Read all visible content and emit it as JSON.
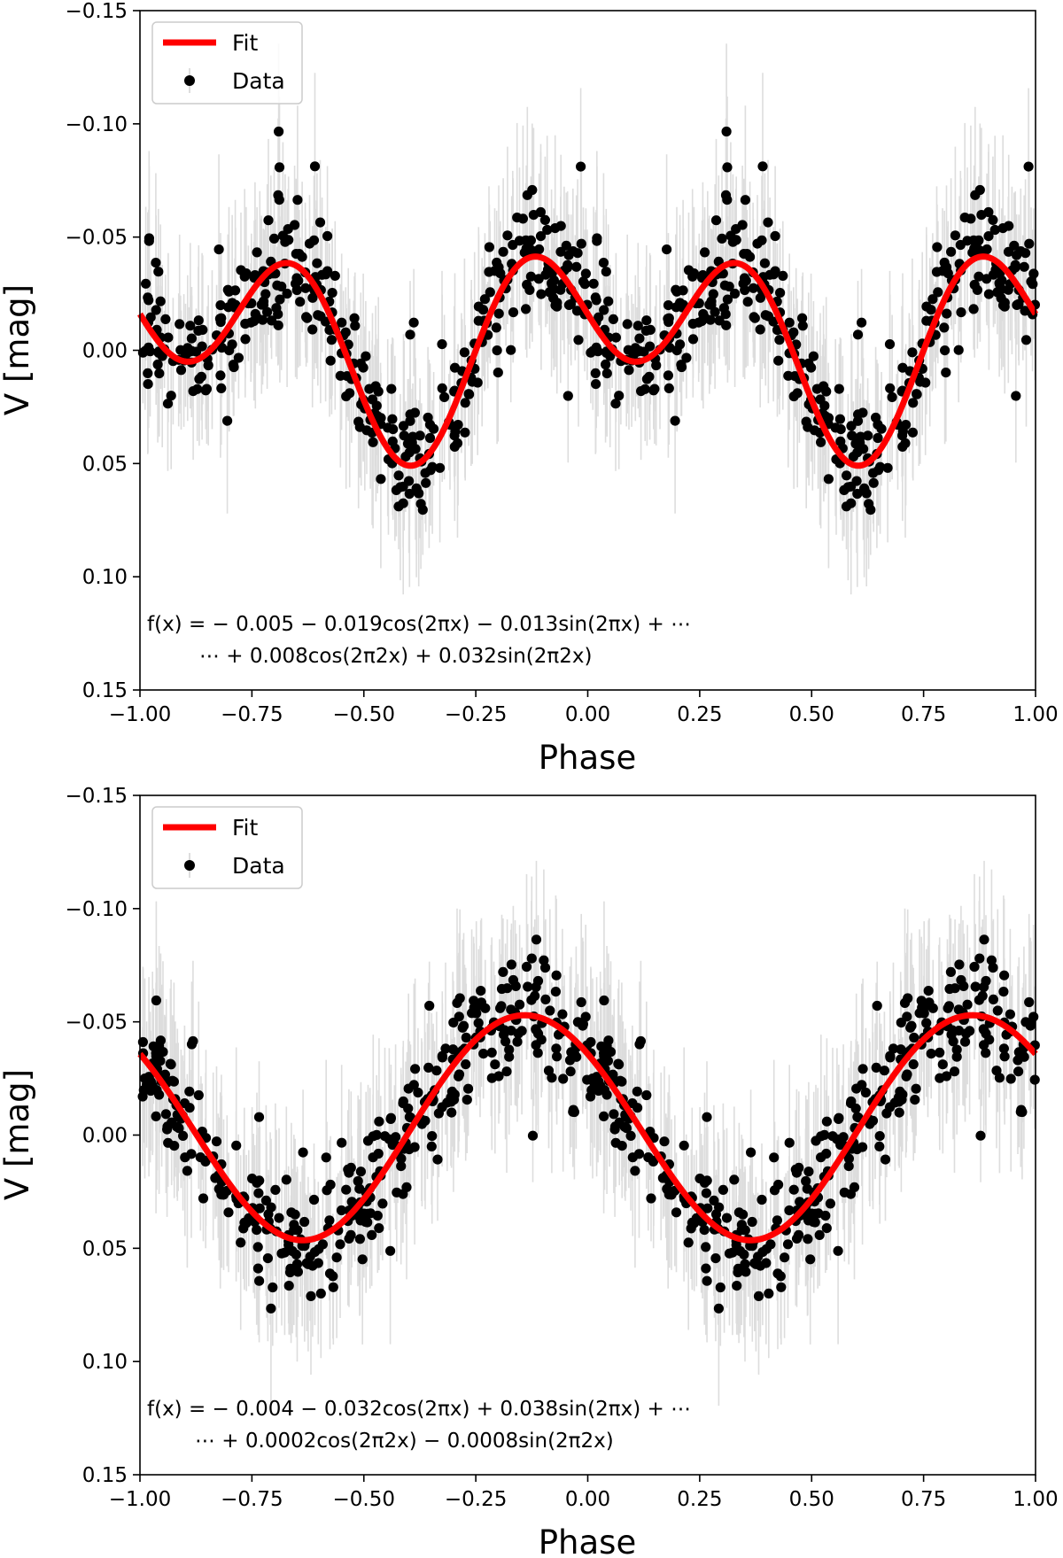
{
  "chart_data": [
    {
      "type": "scatter",
      "panel": "top",
      "xlabel": "Phase",
      "ylabel": "V [mag]",
      "xlim": [
        -1.0,
        1.0
      ],
      "ylim": [
        0.15,
        -0.15
      ],
      "y_inverted": true,
      "xticks": [
        "−1.00",
        "−0.75",
        "−0.50",
        "−0.25",
        "0.00",
        "0.25",
        "0.50",
        "0.75",
        "1.00"
      ],
      "xtick_values": [
        -1.0,
        -0.75,
        -0.5,
        -0.25,
        0.0,
        0.25,
        0.5,
        0.75,
        1.0
      ],
      "yticks": [
        "−0.15",
        "−0.10",
        "−0.05",
        "0.00",
        "0.05",
        "0.10",
        "0.15"
      ],
      "ytick_values": [
        -0.15,
        -0.1,
        -0.05,
        0.0,
        0.05,
        0.1,
        0.15
      ],
      "legend": {
        "location": "top-left",
        "entries": [
          "Fit",
          "Data"
        ]
      },
      "formula_line1": "f(x) = − 0.005 − 0.019cos(2πx) − 0.013sin(2πx) + ⋯",
      "formula_line2": "⋯ + 0.008cos(2π2x) + 0.032sin(2π2x)",
      "fit": {
        "a0": -0.005,
        "a1": -0.019,
        "b1": -0.013,
        "a2": 0.008,
        "b2": 0.032
      },
      "series": [
        {
          "name": "Fit",
          "kind": "line",
          "color": "#ff0000"
        },
        {
          "name": "Data",
          "kind": "points",
          "color": "#000000",
          "errorbar_color": "#dddddd",
          "n_points": 380,
          "scatter_sigma": 0.014,
          "errorbar_halfwidth": 0.028
        }
      ]
    },
    {
      "type": "scatter",
      "panel": "bottom",
      "xlabel": "Phase",
      "ylabel": "V [mag]",
      "xlim": [
        -1.0,
        1.0
      ],
      "ylim": [
        0.15,
        -0.15
      ],
      "y_inverted": true,
      "xticks": [
        "−1.00",
        "−0.75",
        "−0.50",
        "−0.25",
        "0.00",
        "0.25",
        "0.50",
        "0.75",
        "1.00"
      ],
      "xtick_values": [
        -1.0,
        -0.75,
        -0.5,
        -0.25,
        0.0,
        0.25,
        0.5,
        0.75,
        1.0
      ],
      "yticks": [
        "−0.15",
        "−0.10",
        "−0.05",
        "0.00",
        "0.05",
        "0.10",
        "0.15"
      ],
      "ytick_values": [
        -0.15,
        -0.1,
        -0.05,
        0.0,
        0.05,
        0.1,
        0.15
      ],
      "legend": {
        "location": "top-left",
        "entries": [
          "Fit",
          "Data"
        ]
      },
      "formula_line1": "f(x) = − 0.004 − 0.032cos(2πx) + 0.038sin(2πx) + ⋯",
      "formula_line2": "⋯ + 0.0002cos(2π2x) − 0.0008sin(2π2x)",
      "fit": {
        "a0": -0.004,
        "a1": -0.032,
        "b1": 0.038,
        "a2": 0.0002,
        "b2": -0.0008
      },
      "series": [
        {
          "name": "Fit",
          "kind": "line",
          "color": "#ff0000"
        },
        {
          "name": "Data",
          "kind": "points",
          "color": "#000000",
          "errorbar_color": "#dddddd",
          "n_points": 380,
          "scatter_sigma": 0.015,
          "errorbar_halfwidth": 0.03
        }
      ]
    }
  ]
}
